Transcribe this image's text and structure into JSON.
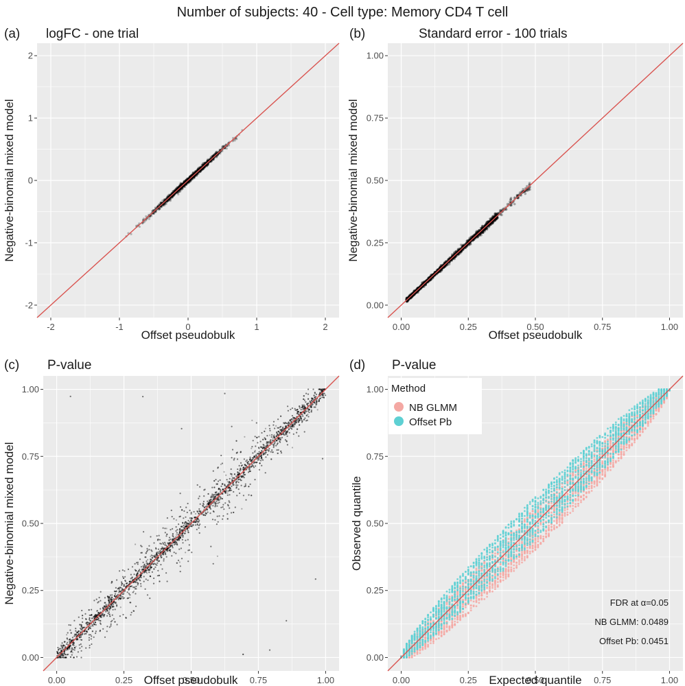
{
  "figure_title": "Number of subjects: 40 - Cell type: Memory CD4 T cell",
  "colors": {
    "panel_bg": "#ebebeb",
    "grid": "#ffffff",
    "identity_line": "#d9534f",
    "points": "#000000",
    "nb_glmm": "#f4a8a3",
    "offset_pb": "#5ed0d3"
  },
  "chart_data": [
    {
      "id": "a",
      "label": "(a)",
      "title": "logFC - one trial",
      "type": "scatter",
      "xlabel": "Offset pseudobulk",
      "ylabel": "Negative-binomial mixed model",
      "xlim": [
        -2.2,
        2.2
      ],
      "ylim": [
        -2.2,
        2.2
      ],
      "xticks": [
        -2,
        -1,
        0,
        1,
        2
      ],
      "yticks": [
        -2,
        -1,
        0,
        1,
        2
      ],
      "xtick_labels": [
        "-2",
        "-1",
        "0",
        "1",
        "2"
      ],
      "ytick_labels": [
        "-2",
        "-1",
        "0",
        "1",
        "2"
      ],
      "identity_line": true,
      "point_cloud": {
        "x_range": [
          -0.9,
          0.8
        ],
        "center": 0.0,
        "spread": 0.25,
        "noise": 0.02
      }
    },
    {
      "id": "b",
      "label": "(b)",
      "title": "Standard error - 100 trials",
      "type": "scatter",
      "xlabel": "Offset pseudobulk",
      "ylabel": "Negative-binomial mixed model",
      "xlim": [
        -0.05,
        1.05
      ],
      "ylim": [
        -0.05,
        1.05
      ],
      "xticks": [
        0,
        0.25,
        0.5,
        0.75,
        1.0
      ],
      "yticks": [
        0,
        0.25,
        0.5,
        0.75,
        1.0
      ],
      "xtick_labels": [
        "0.00",
        "0.25",
        "0.50",
        "0.75",
        "1.00"
      ],
      "ytick_labels": [
        "0.00",
        "0.25",
        "0.50",
        "0.75",
        "1.00"
      ],
      "identity_line": true,
      "point_cloud": {
        "x_range": [
          0.02,
          0.48
        ],
        "center": 0.2,
        "spread": 0.09,
        "noise": 0.003
      }
    },
    {
      "id": "c",
      "label": "(c)",
      "title": "P-value",
      "type": "scatter",
      "xlabel": "Offset pseudobulk",
      "ylabel": "Negative-binomial mixed model",
      "xlim": [
        -0.05,
        1.05
      ],
      "ylim": [
        -0.05,
        1.05
      ],
      "xticks": [
        0,
        0.25,
        0.5,
        0.75,
        1.0
      ],
      "yticks": [
        0,
        0.25,
        0.5,
        0.75,
        1.0
      ],
      "xtick_labels": [
        "0.00",
        "0.25",
        "0.50",
        "0.75",
        "1.00"
      ],
      "ytick_labels": [
        "0.00",
        "0.25",
        "0.50",
        "0.75",
        "1.00"
      ],
      "identity_line": true,
      "point_cloud": {
        "x_range": [
          0.0,
          1.0
        ],
        "noise": 0.04
      }
    },
    {
      "id": "d",
      "label": "(d)",
      "title": "P-value",
      "type": "scatter",
      "xlabel": "Expected quantile",
      "ylabel": "Observed quantile",
      "xlim": [
        -0.05,
        1.05
      ],
      "ylim": [
        -0.05,
        1.05
      ],
      "xticks": [
        0,
        0.25,
        0.5,
        0.75,
        1.0
      ],
      "yticks": [
        0,
        0.25,
        0.5,
        0.75,
        1.0
      ],
      "xtick_labels": [
        "0.00",
        "0.25",
        "0.50",
        "0.75",
        "1.00"
      ],
      "ytick_labels": [
        "0.00",
        "0.25",
        "0.50",
        "0.75",
        "1.00"
      ],
      "identity_line": true,
      "legend": {
        "title": "Method",
        "position": "top-left",
        "entries": [
          "NB GLMM",
          "Offset Pb"
        ]
      },
      "series": [
        {
          "name": "NB GLMM",
          "color_key": "nb_glmm",
          "offset": -0.02
        },
        {
          "name": "Offset Pb",
          "color_key": "offset_pb",
          "offset": 0.02
        }
      ],
      "annotation": {
        "header": "FDR at α=0.05",
        "lines": [
          "NB GLMM: 0.0489",
          "Offset Pb: 0.0451"
        ],
        "fdr_values": {
          "NB GLMM": 0.0489,
          "Offset Pb": 0.0451
        }
      }
    }
  ]
}
